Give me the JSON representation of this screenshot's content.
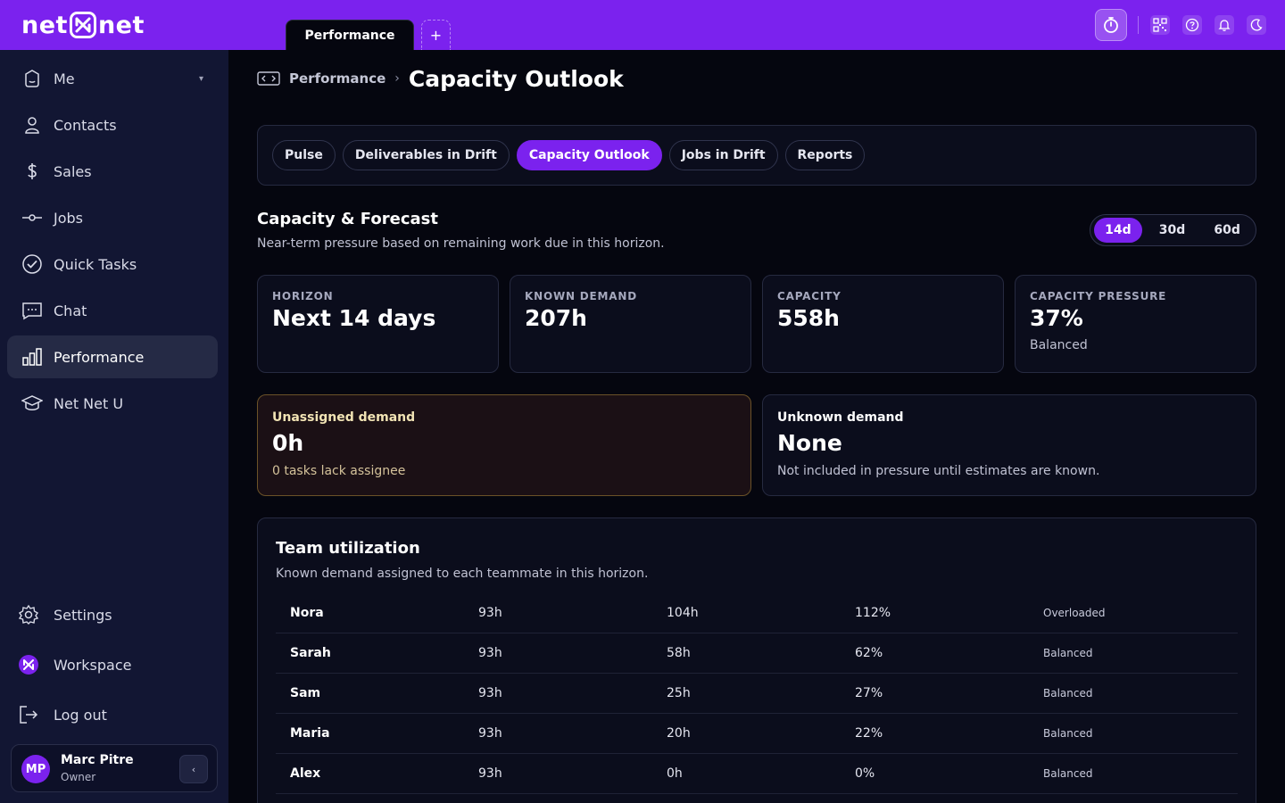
{
  "app": {
    "logo_left": "net",
    "logo_right": "net",
    "open_tab": "Performance",
    "add_tab": "+"
  },
  "topbar": {
    "icons": [
      "stopwatch-icon",
      "qr-code-icon",
      "help-icon",
      "bell-icon",
      "moon-icon"
    ]
  },
  "sidebar": {
    "items": [
      {
        "label": "Me",
        "icon": "user-badge-icon",
        "caret": "▾"
      },
      {
        "label": "Contacts",
        "icon": "person-icon"
      },
      {
        "label": "Sales",
        "icon": "dollar-icon"
      },
      {
        "label": "Jobs",
        "icon": "commit-icon"
      },
      {
        "label": "Quick Tasks",
        "icon": "check-circle-icon"
      },
      {
        "label": "Chat",
        "icon": "chat-icon"
      },
      {
        "label": "Performance",
        "icon": "bar-chart-icon"
      },
      {
        "label": "Net Net U",
        "icon": "graduation-cap-icon"
      }
    ],
    "bottom": {
      "settings": "Settings",
      "workspace": "Workspace",
      "logout": "Log out"
    },
    "profile": {
      "initials": "MP",
      "name": "Marc Pitre",
      "role": "Owner",
      "collapse": "‹"
    }
  },
  "breadcrumb": {
    "parent": "Performance",
    "separator": "›",
    "title": "Capacity Outlook"
  },
  "tabs": [
    "Pulse",
    "Deliverables in Drift",
    "Capacity Outlook",
    "Jobs in Drift",
    "Reports"
  ],
  "active_tab": "Capacity Outlook",
  "section": {
    "title": "Capacity & Forecast",
    "subtitle": "Near-term pressure based on remaining work due in this horizon."
  },
  "range": {
    "options": [
      "14d",
      "30d",
      "60d"
    ],
    "selected": "14d"
  },
  "stats": [
    {
      "label": "HORIZON",
      "value": "Next 14 days",
      "note": ""
    },
    {
      "label": "KNOWN DEMAND",
      "value": "207h",
      "note": ""
    },
    {
      "label": "CAPACITY",
      "value": "558h",
      "note": ""
    },
    {
      "label": "CAPACITY PRESSURE",
      "value": "37%",
      "note": "Balanced"
    }
  ],
  "unassigned": {
    "label": "Unassigned demand",
    "value": "0h",
    "note": "0 tasks lack assignee"
  },
  "unknown": {
    "label": "Unknown demand",
    "value": "None",
    "note": "Not included in pressure until estimates are known."
  },
  "team": {
    "title": "Team utilization",
    "subtitle": "Known demand assigned to each teammate in this horizon.",
    "rows": [
      [
        "Nora",
        "93h",
        "104h",
        "112%",
        "Overloaded"
      ],
      [
        "Sarah",
        "93h",
        "58h",
        "62%",
        "Balanced"
      ],
      [
        "Sam",
        "93h",
        "25h",
        "27%",
        "Balanced"
      ],
      [
        "Maria",
        "93h",
        "20h",
        "22%",
        "Balanced"
      ],
      [
        "Alex",
        "93h",
        "0h",
        "0%",
        "Balanced"
      ]
    ]
  },
  "colors": {
    "brand": "#7b22ee",
    "sidebar": "#121633",
    "background": "#05060f",
    "warning_border": "#6b5228"
  }
}
